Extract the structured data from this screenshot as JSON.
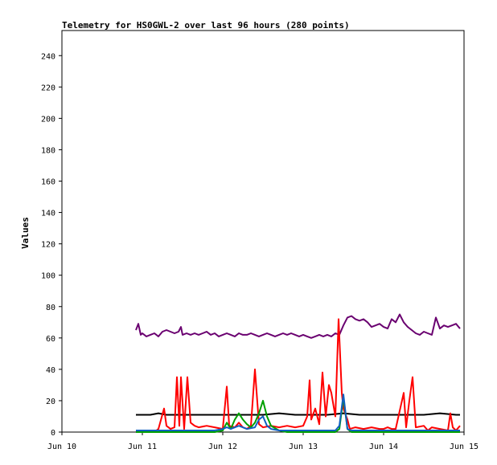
{
  "chart_data": {
    "type": "line",
    "title": "Telemetry for HS0GWL-2 over last 96 hours (280 points)",
    "xlabel": "",
    "ylabel": "Values",
    "x_ticks": [
      "Jun 10",
      "Jun 11",
      "Jun 12",
      "Jun 13",
      "Jun 14",
      "Jun 15"
    ],
    "y_ticks": [
      0,
      20,
      40,
      60,
      80,
      100,
      120,
      140,
      160,
      180,
      200,
      220,
      240
    ],
    "xlim_days": [
      10,
      15
    ],
    "ylim": [
      0,
      256
    ],
    "grid": false,
    "legend": "none",
    "series": [
      {
        "color": "#6a0070",
        "points": [
          [
            10.92,
            65
          ],
          [
            10.95,
            69
          ],
          [
            10.98,
            62
          ],
          [
            11.0,
            63
          ],
          [
            11.05,
            61
          ],
          [
            11.1,
            62
          ],
          [
            11.15,
            63
          ],
          [
            11.2,
            61
          ],
          [
            11.25,
            64
          ],
          [
            11.3,
            65
          ],
          [
            11.35,
            64
          ],
          [
            11.4,
            63
          ],
          [
            11.45,
            64
          ],
          [
            11.48,
            67
          ],
          [
            11.5,
            62
          ],
          [
            11.55,
            63
          ],
          [
            11.6,
            62
          ],
          [
            11.65,
            63
          ],
          [
            11.7,
            62
          ],
          [
            11.75,
            63
          ],
          [
            11.8,
            64
          ],
          [
            11.85,
            62
          ],
          [
            11.9,
            63
          ],
          [
            11.95,
            61
          ],
          [
            12.0,
            62
          ],
          [
            12.05,
            63
          ],
          [
            12.1,
            62
          ],
          [
            12.15,
            61
          ],
          [
            12.2,
            63
          ],
          [
            12.25,
            62
          ],
          [
            12.3,
            62
          ],
          [
            12.35,
            63
          ],
          [
            12.4,
            62
          ],
          [
            12.45,
            61
          ],
          [
            12.5,
            62
          ],
          [
            12.55,
            63
          ],
          [
            12.6,
            62
          ],
          [
            12.65,
            61
          ],
          [
            12.7,
            62
          ],
          [
            12.75,
            63
          ],
          [
            12.8,
            62
          ],
          [
            12.85,
            63
          ],
          [
            12.9,
            62
          ],
          [
            12.95,
            61
          ],
          [
            13.0,
            62
          ],
          [
            13.05,
            61
          ],
          [
            13.1,
            60
          ],
          [
            13.15,
            61
          ],
          [
            13.2,
            62
          ],
          [
            13.25,
            61
          ],
          [
            13.3,
            62
          ],
          [
            13.35,
            61
          ],
          [
            13.4,
            63
          ],
          [
            13.45,
            62
          ],
          [
            13.5,
            68
          ],
          [
            13.55,
            73
          ],
          [
            13.6,
            74
          ],
          [
            13.65,
            72
          ],
          [
            13.7,
            71
          ],
          [
            13.75,
            72
          ],
          [
            13.8,
            70
          ],
          [
            13.85,
            67
          ],
          [
            13.9,
            68
          ],
          [
            13.95,
            69
          ],
          [
            14.0,
            67
          ],
          [
            14.05,
            66
          ],
          [
            14.1,
            72
          ],
          [
            14.15,
            70
          ],
          [
            14.2,
            75
          ],
          [
            14.25,
            70
          ],
          [
            14.3,
            67
          ],
          [
            14.35,
            65
          ],
          [
            14.4,
            63
          ],
          [
            14.45,
            62
          ],
          [
            14.5,
            64
          ],
          [
            14.55,
            63
          ],
          [
            14.6,
            62
          ],
          [
            14.65,
            73
          ],
          [
            14.7,
            66
          ],
          [
            14.75,
            68
          ],
          [
            14.8,
            67
          ],
          [
            14.85,
            68
          ],
          [
            14.9,
            69
          ],
          [
            14.95,
            66
          ]
        ]
      },
      {
        "color": "#000000",
        "points": [
          [
            10.92,
            11
          ],
          [
            11.0,
            11
          ],
          [
            11.1,
            11
          ],
          [
            11.2,
            12
          ],
          [
            11.3,
            11
          ],
          [
            11.5,
            11
          ],
          [
            11.7,
            11
          ],
          [
            11.9,
            11
          ],
          [
            12.1,
            11
          ],
          [
            12.3,
            11
          ],
          [
            12.5,
            11
          ],
          [
            12.7,
            12
          ],
          [
            12.9,
            11
          ],
          [
            13.1,
            11
          ],
          [
            13.3,
            11
          ],
          [
            13.5,
            12
          ],
          [
            13.7,
            11
          ],
          [
            13.9,
            11
          ],
          [
            14.1,
            11
          ],
          [
            14.3,
            11
          ],
          [
            14.5,
            11
          ],
          [
            14.7,
            12
          ],
          [
            14.9,
            11
          ],
          [
            14.95,
            11
          ]
        ]
      },
      {
        "color": "#ff0000",
        "points": [
          [
            10.92,
            0
          ],
          [
            11.0,
            1
          ],
          [
            11.05,
            0
          ],
          [
            11.1,
            1
          ],
          [
            11.15,
            0
          ],
          [
            11.2,
            2
          ],
          [
            11.27,
            15
          ],
          [
            11.3,
            4
          ],
          [
            11.35,
            2
          ],
          [
            11.4,
            3
          ],
          [
            11.43,
            35
          ],
          [
            11.46,
            4
          ],
          [
            11.48,
            35
          ],
          [
            11.52,
            2
          ],
          [
            11.56,
            35
          ],
          [
            11.6,
            6
          ],
          [
            11.65,
            4
          ],
          [
            11.7,
            3
          ],
          [
            11.8,
            4
          ],
          [
            11.9,
            3
          ],
          [
            12.0,
            2
          ],
          [
            12.05,
            29
          ],
          [
            12.08,
            4
          ],
          [
            12.15,
            3
          ],
          [
            12.2,
            6
          ],
          [
            12.25,
            3
          ],
          [
            12.3,
            2
          ],
          [
            12.35,
            4
          ],
          [
            12.4,
            40
          ],
          [
            12.45,
            5
          ],
          [
            12.5,
            3
          ],
          [
            12.6,
            4
          ],
          [
            12.7,
            3
          ],
          [
            12.8,
            4
          ],
          [
            12.9,
            3
          ],
          [
            13.0,
            4
          ],
          [
            13.05,
            10
          ],
          [
            13.08,
            33
          ],
          [
            13.1,
            8
          ],
          [
            13.15,
            15
          ],
          [
            13.2,
            5
          ],
          [
            13.24,
            38
          ],
          [
            13.28,
            10
          ],
          [
            13.32,
            30
          ],
          [
            13.35,
            25
          ],
          [
            13.4,
            10
          ],
          [
            13.44,
            72
          ],
          [
            13.48,
            25
          ],
          [
            13.5,
            15
          ],
          [
            13.55,
            8
          ],
          [
            13.58,
            2
          ],
          [
            13.65,
            3
          ],
          [
            13.75,
            2
          ],
          [
            13.85,
            3
          ],
          [
            13.95,
            2
          ],
          [
            14.0,
            2
          ],
          [
            14.05,
            3
          ],
          [
            14.1,
            2
          ],
          [
            14.15,
            2
          ],
          [
            14.25,
            25
          ],
          [
            14.28,
            3
          ],
          [
            14.32,
            20
          ],
          [
            14.36,
            35
          ],
          [
            14.4,
            3
          ],
          [
            14.5,
            4
          ],
          [
            14.55,
            1
          ],
          [
            14.6,
            3
          ],
          [
            14.7,
            2
          ],
          [
            14.8,
            1
          ],
          [
            14.83,
            12
          ],
          [
            14.86,
            3
          ],
          [
            14.9,
            1
          ],
          [
            14.95,
            4
          ]
        ]
      },
      {
        "color": "#00a000",
        "points": [
          [
            10.92,
            0
          ],
          [
            11.2,
            0
          ],
          [
            11.9,
            0
          ],
          [
            12.0,
            1
          ],
          [
            12.05,
            6
          ],
          [
            12.1,
            2
          ],
          [
            12.15,
            8
          ],
          [
            12.2,
            12
          ],
          [
            12.25,
            8
          ],
          [
            12.3,
            5
          ],
          [
            12.35,
            3
          ],
          [
            12.4,
            6
          ],
          [
            12.45,
            12
          ],
          [
            12.5,
            20
          ],
          [
            12.55,
            10
          ],
          [
            12.6,
            4
          ],
          [
            12.7,
            1
          ],
          [
            12.8,
            0
          ],
          [
            13.4,
            0
          ],
          [
            13.45,
            2
          ],
          [
            13.5,
            22
          ],
          [
            13.55,
            2
          ],
          [
            13.6,
            0
          ],
          [
            14.95,
            0
          ]
        ]
      },
      {
        "color": "#1060c0",
        "points": [
          [
            10.92,
            1
          ],
          [
            11.2,
            1
          ],
          [
            11.9,
            1
          ],
          [
            12.0,
            2
          ],
          [
            12.05,
            3
          ],
          [
            12.1,
            2
          ],
          [
            12.2,
            4
          ],
          [
            12.3,
            2
          ],
          [
            12.4,
            3
          ],
          [
            12.45,
            8
          ],
          [
            12.5,
            10
          ],
          [
            12.55,
            4
          ],
          [
            12.6,
            2
          ],
          [
            12.7,
            1
          ],
          [
            13.4,
            1
          ],
          [
            13.45,
            4
          ],
          [
            13.5,
            24
          ],
          [
            13.55,
            2
          ],
          [
            13.6,
            1
          ],
          [
            14.95,
            1
          ]
        ]
      }
    ]
  }
}
